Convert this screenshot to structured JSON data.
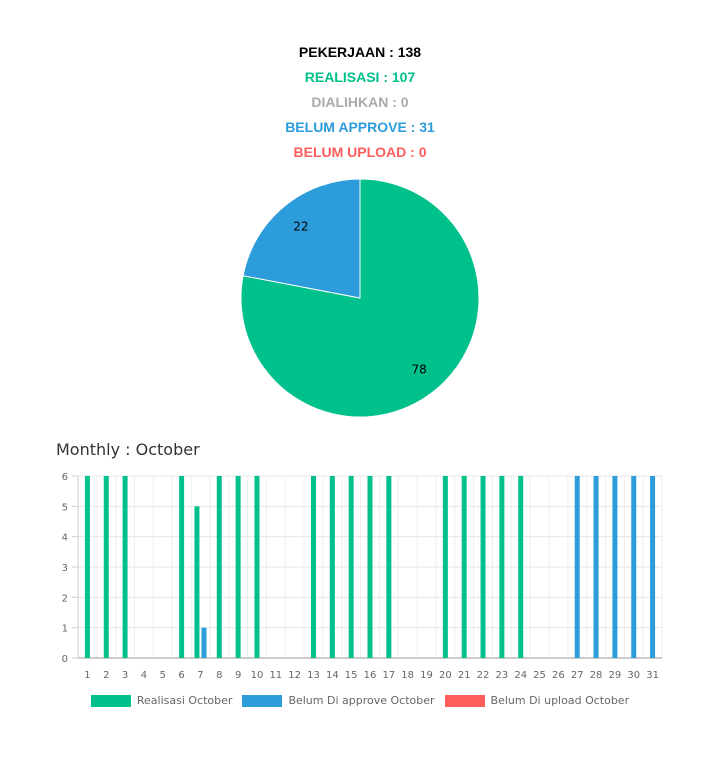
{
  "summary": {
    "pekerjaan": "PEKERJAAN : 138",
    "realisasi": "REALISASI : 107",
    "dialihkan": "DIALIHKAN : 0",
    "belum_approve": "BELUM APPROVE : 31",
    "belum_upload": "BELUM UPLOAD : 0"
  },
  "colors": {
    "black": "#000000",
    "green": "#00c08b",
    "gray": "#aaaaaa",
    "blue": "#2d9cdb",
    "red": "#ff5c5c"
  },
  "monthly_title": "Monthly : October",
  "chart_data": [
    {
      "type": "pie",
      "labels": [
        "Realisasi",
        "Belum Approve"
      ],
      "values": [
        78,
        22
      ],
      "slice_labels": [
        "78",
        "22"
      ],
      "colors": [
        "#00c08b",
        "#2d9cdb"
      ]
    },
    {
      "type": "bar",
      "categories": [
        "1",
        "2",
        "3",
        "4",
        "5",
        "6",
        "7",
        "8",
        "9",
        "10",
        "11",
        "12",
        "13",
        "14",
        "15",
        "16",
        "17",
        "18",
        "19",
        "20",
        "21",
        "22",
        "23",
        "24",
        "25",
        "26",
        "27",
        "28",
        "29",
        "30",
        "31"
      ],
      "ylim": [
        0,
        6
      ],
      "yticks": [
        "0",
        "1",
        "2",
        "3",
        "4",
        "5",
        "6"
      ],
      "grid": true,
      "legend_position": "bottom",
      "series": [
        {
          "name": "Realisasi October",
          "color": "#00c08b",
          "values": [
            6,
            6,
            6,
            0,
            0,
            6,
            5,
            6,
            6,
            6,
            0,
            0,
            6,
            6,
            6,
            6,
            6,
            0,
            0,
            6,
            6,
            6,
            6,
            6,
            0,
            0,
            0,
            0,
            0,
            0,
            0
          ]
        },
        {
          "name": "Belum Di approve October",
          "color": "#2d9cdb",
          "values": [
            0,
            0,
            0,
            0,
            0,
            0,
            1,
            0,
            0,
            0,
            0,
            0,
            0,
            0,
            0,
            0,
            0,
            0,
            0,
            0,
            0,
            0,
            0,
            0,
            0,
            0,
            6,
            6,
            6,
            6,
            6
          ]
        },
        {
          "name": "Belum Di upload October",
          "color": "#ff5c5c",
          "values": [
            0,
            0,
            0,
            0,
            0,
            0,
            0,
            0,
            0,
            0,
            0,
            0,
            0,
            0,
            0,
            0,
            0,
            0,
            0,
            0,
            0,
            0,
            0,
            0,
            0,
            0,
            0,
            0,
            0,
            0,
            0
          ]
        }
      ]
    }
  ]
}
